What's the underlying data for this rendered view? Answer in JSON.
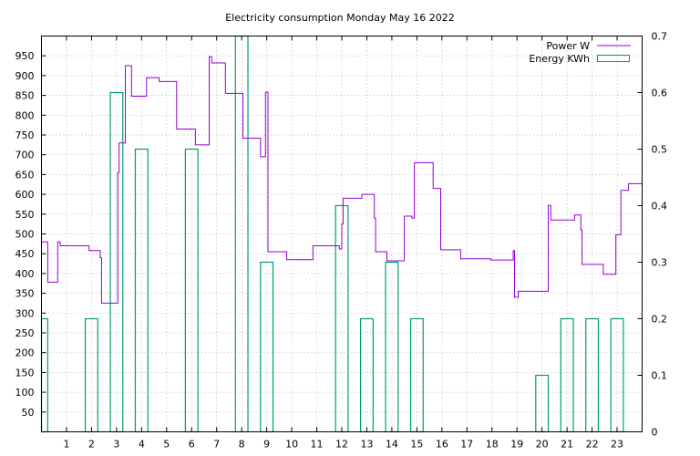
{
  "chart_data": {
    "type": "line",
    "title": "Electricity consumption Monday May 16 2022",
    "xlabel": "",
    "ylabel": "",
    "y2label": "",
    "xlim": [
      0,
      24
    ],
    "ylim": [
      0,
      1000
    ],
    "y2lim": [
      0,
      0.7
    ],
    "grid": true,
    "legend_position": "top-right",
    "x_ticks": [
      1,
      2,
      3,
      4,
      5,
      6,
      7,
      8,
      9,
      10,
      11,
      12,
      13,
      14,
      15,
      16,
      17,
      18,
      19,
      20,
      21,
      22,
      23
    ],
    "y_ticks": [
      50,
      100,
      150,
      200,
      250,
      300,
      350,
      400,
      450,
      500,
      550,
      600,
      650,
      700,
      750,
      800,
      850,
      900,
      950
    ],
    "y2_ticks": [
      0,
      0.1,
      0.2,
      0.3,
      0.4,
      0.5,
      0.6,
      0.7
    ],
    "series": [
      {
        "name": "Power W",
        "color": "#9400d3",
        "style": "step-line",
        "points": [
          [
            0.0,
            480
          ],
          [
            0.25,
            480
          ],
          [
            0.25,
            378
          ],
          [
            0.65,
            378
          ],
          [
            0.65,
            480
          ],
          [
            0.75,
            480
          ],
          [
            0.75,
            470
          ],
          [
            1.9,
            470
          ],
          [
            1.9,
            458
          ],
          [
            2.35,
            458
          ],
          [
            2.35,
            440
          ],
          [
            2.4,
            440
          ],
          [
            2.4,
            325
          ],
          [
            3.05,
            325
          ],
          [
            3.05,
            655
          ],
          [
            3.1,
            655
          ],
          [
            3.1,
            730
          ],
          [
            3.35,
            730
          ],
          [
            3.35,
            925
          ],
          [
            3.6,
            925
          ],
          [
            3.6,
            848
          ],
          [
            4.2,
            848
          ],
          [
            4.2,
            895
          ],
          [
            4.7,
            895
          ],
          [
            4.7,
            885
          ],
          [
            5.4,
            885
          ],
          [
            5.4,
            765
          ],
          [
            6.15,
            765
          ],
          [
            6.15,
            725
          ],
          [
            6.7,
            725
          ],
          [
            6.7,
            948
          ],
          [
            6.8,
            948
          ],
          [
            6.8,
            932
          ],
          [
            7.35,
            932
          ],
          [
            7.35,
            855
          ],
          [
            8.05,
            855
          ],
          [
            8.05,
            742
          ],
          [
            8.75,
            742
          ],
          [
            8.75,
            695
          ],
          [
            8.95,
            695
          ],
          [
            8.95,
            858
          ],
          [
            9.05,
            858
          ],
          [
            9.05,
            455
          ],
          [
            9.8,
            455
          ],
          [
            9.8,
            435
          ],
          [
            10.85,
            435
          ],
          [
            10.85,
            470
          ],
          [
            11.9,
            470
          ],
          [
            11.9,
            462
          ],
          [
            12.0,
            462
          ],
          [
            12.0,
            525
          ],
          [
            12.05,
            525
          ],
          [
            12.05,
            590
          ],
          [
            12.8,
            590
          ],
          [
            12.8,
            600
          ],
          [
            13.3,
            600
          ],
          [
            13.3,
            540
          ],
          [
            13.35,
            540
          ],
          [
            13.35,
            455
          ],
          [
            13.8,
            455
          ],
          [
            13.8,
            432
          ],
          [
            14.5,
            432
          ],
          [
            14.5,
            545
          ],
          [
            14.8,
            545
          ],
          [
            14.8,
            540
          ],
          [
            14.9,
            540
          ],
          [
            14.9,
            680
          ],
          [
            15.65,
            680
          ],
          [
            15.65,
            615
          ],
          [
            15.95,
            615
          ],
          [
            15.95,
            460
          ],
          [
            16.75,
            460
          ],
          [
            16.75,
            437
          ],
          [
            17.95,
            437
          ],
          [
            17.95,
            434
          ],
          [
            18.85,
            434
          ],
          [
            18.85,
            458
          ],
          [
            18.9,
            458
          ],
          [
            18.9,
            340
          ],
          [
            19.05,
            340
          ],
          [
            19.05,
            355
          ],
          [
            20.25,
            355
          ],
          [
            20.25,
            572
          ],
          [
            20.35,
            572
          ],
          [
            20.35,
            535
          ],
          [
            21.3,
            535
          ],
          [
            21.3,
            548
          ],
          [
            21.55,
            548
          ],
          [
            21.55,
            510
          ],
          [
            21.6,
            510
          ],
          [
            21.6,
            423
          ],
          [
            22.45,
            423
          ],
          [
            22.45,
            398
          ],
          [
            22.95,
            398
          ],
          [
            22.95,
            498
          ],
          [
            23.15,
            498
          ],
          [
            23.15,
            610
          ],
          [
            23.45,
            610
          ],
          [
            23.45,
            627
          ],
          [
            24.0,
            627
          ]
        ]
      },
      {
        "name": "Energy KWh",
        "color": "#009e73",
        "style": "boxes",
        "axis": "y2",
        "boxes": [
          [
            0.0,
            0.2
          ],
          [
            1.0,
            0.0
          ],
          [
            2.0,
            0.2
          ],
          [
            3.0,
            0.6
          ],
          [
            4.0,
            0.5
          ],
          [
            5.0,
            0.0
          ],
          [
            6.0,
            0.5
          ],
          [
            7.0,
            0.0
          ],
          [
            8.0,
            0.7
          ],
          [
            9.0,
            0.3
          ],
          [
            10.0,
            0.0
          ],
          [
            11.0,
            0.0
          ],
          [
            12.0,
            0.4
          ],
          [
            13.0,
            0.2
          ],
          [
            14.0,
            0.3
          ],
          [
            15.0,
            0.2
          ],
          [
            16.0,
            0.0
          ],
          [
            17.0,
            0.0
          ],
          [
            18.0,
            0.0
          ],
          [
            19.0,
            0.0
          ],
          [
            20.0,
            0.1
          ],
          [
            21.0,
            0.2
          ],
          [
            22.0,
            0.2
          ],
          [
            23.0,
            0.2
          ]
        ]
      }
    ]
  }
}
